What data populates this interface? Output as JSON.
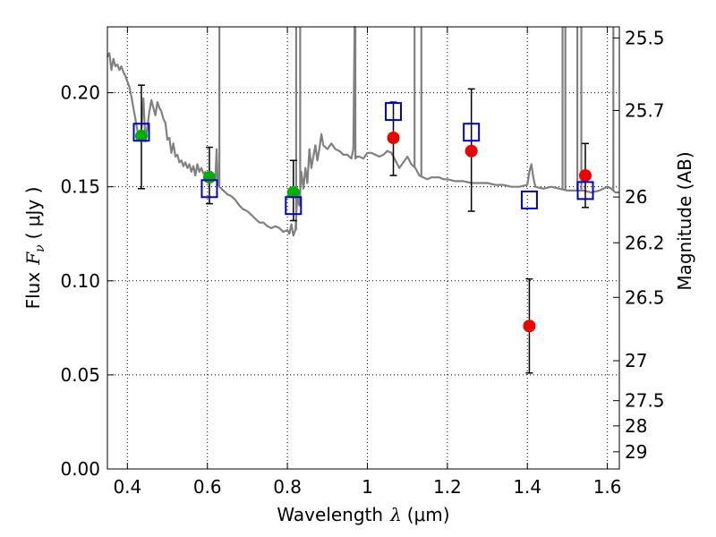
{
  "chart_data": {
    "type": "scatter",
    "xlabel": "Wavelength",
    "xlabel_symbol": "λ",
    "xlabel_unit": "(μm)",
    "ylabel": "Flux",
    "ylabel_symbol": "F",
    "ylabel_subscript": "ν",
    "ylabel_unit": "( μJy )",
    "y2label": "Magnitude (AB)",
    "xlim": [
      0.35,
      1.63
    ],
    "ylim": [
      0.0,
      0.235
    ],
    "grid": true,
    "grid_style": "dotted",
    "x_ticks": [
      {
        "value": 0.4,
        "label": "0.4"
      },
      {
        "value": 0.6,
        "label": "0.6"
      },
      {
        "value": 0.8,
        "label": "0.8"
      },
      {
        "value": 1.0,
        "label": "1"
      },
      {
        "value": 1.2,
        "label": "1.2"
      },
      {
        "value": 1.4,
        "label": "1.4"
      },
      {
        "value": 1.6,
        "label": "1.6"
      }
    ],
    "y_ticks": [
      {
        "value": 0.0,
        "label": "0.00"
      },
      {
        "value": 0.05,
        "label": "0.05"
      },
      {
        "value": 0.1,
        "label": "0.10"
      },
      {
        "value": 0.15,
        "label": "0.15"
      },
      {
        "value": 0.2,
        "label": "0.20"
      }
    ],
    "y2_ticks": [
      {
        "mag": 25.5,
        "label": "25.5"
      },
      {
        "mag": 25.7,
        "label": "25.7"
      },
      {
        "mag": 26.0,
        "label": "26"
      },
      {
        "mag": 26.2,
        "label": "26.2"
      },
      {
        "mag": 26.5,
        "label": "26.5"
      },
      {
        "mag": 27.0,
        "label": "27"
      },
      {
        "mag": 27.5,
        "label": "27.5"
      },
      {
        "mag": 28.0,
        "label": "28"
      },
      {
        "mag": 29.0,
        "label": "29"
      }
    ],
    "model_spectrum": {
      "color": "#808080",
      "x": [
        0.35,
        0.355,
        0.36,
        0.365,
        0.37,
        0.375,
        0.38,
        0.385,
        0.39,
        0.395,
        0.4,
        0.405,
        0.41,
        0.415,
        0.42,
        0.425,
        0.43,
        0.435,
        0.44,
        0.445,
        0.45,
        0.455,
        0.46,
        0.465,
        0.47,
        0.475,
        0.48,
        0.485,
        0.49,
        0.495,
        0.5,
        0.505,
        0.51,
        0.515,
        0.52,
        0.525,
        0.53,
        0.535,
        0.54,
        0.545,
        0.55,
        0.555,
        0.56,
        0.565,
        0.57,
        0.575,
        0.58,
        0.585,
        0.59,
        0.595,
        0.6,
        0.605,
        0.61,
        0.615,
        0.62,
        0.623,
        0.626,
        0.63,
        0.64,
        0.65,
        0.66,
        0.67,
        0.68,
        0.69,
        0.7,
        0.71,
        0.72,
        0.73,
        0.74,
        0.75,
        0.76,
        0.77,
        0.78,
        0.79,
        0.8,
        0.805,
        0.81,
        0.815,
        0.82,
        0.825,
        0.83,
        0.835,
        0.84,
        0.845,
        0.85,
        0.855,
        0.86,
        0.865,
        0.87,
        0.875,
        0.88,
        0.885,
        0.89,
        0.9,
        0.91,
        0.92,
        0.93,
        0.94,
        0.95,
        0.96,
        0.965,
        0.968,
        0.97,
        0.975,
        0.98,
        0.99,
        1.0,
        1.01,
        1.02,
        1.03,
        1.04,
        1.05,
        1.06,
        1.07,
        1.08,
        1.09,
        1.1,
        1.11,
        1.12,
        1.125,
        1.13,
        1.14,
        1.15,
        1.16,
        1.17,
        1.18,
        1.19,
        1.2,
        1.22,
        1.24,
        1.26,
        1.28,
        1.3,
        1.32,
        1.34,
        1.36,
        1.38,
        1.4,
        1.405,
        1.41,
        1.415,
        1.42,
        1.44,
        1.46,
        1.48,
        1.5,
        1.52,
        1.54,
        1.56,
        1.58,
        1.6,
        1.61,
        1.615,
        1.62,
        1.63
      ],
      "y": [
        0.219,
        0.221,
        0.212,
        0.218,
        0.214,
        0.215,
        0.212,
        0.214,
        0.211,
        0.209,
        0.206,
        0.203,
        0.198,
        0.192,
        0.186,
        0.18,
        0.176,
        0.18,
        0.197,
        0.174,
        0.182,
        0.19,
        0.196,
        0.192,
        0.188,
        0.195,
        0.192,
        0.19,
        0.186,
        0.184,
        0.175,
        0.176,
        0.168,
        0.173,
        0.166,
        0.167,
        0.163,
        0.164,
        0.161,
        0.163,
        0.16,
        0.162,
        0.158,
        0.161,
        0.156,
        0.162,
        0.158,
        0.16,
        0.157,
        0.158,
        0.156,
        0.157,
        0.158,
        0.155,
        0.154,
        0.17,
        0.152,
        0.15,
        0.148,
        0.146,
        0.145,
        0.143,
        0.14,
        0.138,
        0.137,
        0.135,
        0.133,
        0.131,
        0.131,
        0.129,
        0.128,
        0.129,
        0.128,
        0.126,
        0.127,
        0.125,
        0.13,
        0.124,
        0.127,
        0.145,
        0.14,
        0.158,
        0.149,
        0.16,
        0.152,
        0.17,
        0.16,
        0.166,
        0.172,
        0.164,
        0.17,
        0.178,
        0.172,
        0.17,
        0.173,
        0.17,
        0.169,
        0.167,
        0.167,
        0.165,
        0.17,
        0.235,
        0.165,
        0.166,
        0.166,
        0.165,
        0.168,
        0.168,
        0.167,
        0.166,
        0.167,
        0.169,
        0.168,
        0.164,
        0.16,
        0.163,
        0.166,
        0.162,
        0.16,
        0.158,
        0.156,
        0.155,
        0.154,
        0.155,
        0.155,
        0.155,
        0.154,
        0.154,
        0.153,
        0.153,
        0.152,
        0.152,
        0.152,
        0.151,
        0.151,
        0.15,
        0.15,
        0.151,
        0.158,
        0.162,
        0.155,
        0.15,
        0.149,
        0.15,
        0.149,
        0.148,
        0.148,
        0.148,
        0.147,
        0.148,
        0.15,
        0.149,
        0.148,
        0.147,
        0.147
      ],
      "spikes": [
        {
          "x": 0.63,
          "top": 0.235
        },
        {
          "x": 0.822,
          "top": 0.235
        },
        {
          "x": 0.832,
          "top": 0.235
        },
        {
          "x": 0.97,
          "top": 0.235
        },
        {
          "x": 1.118,
          "top": 0.235
        },
        {
          "x": 1.135,
          "top": 0.235
        },
        {
          "x": 1.488,
          "top": 0.235
        },
        {
          "x": 1.495,
          "top": 0.235
        },
        {
          "x": 1.525,
          "top": 0.235
        },
        {
          "x": 1.535,
          "top": 0.235
        },
        {
          "x": 1.615,
          "top": 0.235
        }
      ]
    },
    "series": [
      {
        "marker": "circle",
        "color": "#00b000",
        "points": [
          {
            "x": 0.435,
            "y": 0.177,
            "ylo": 0.149,
            "yhi": 0.204
          },
          {
            "x": 0.605,
            "y": 0.155,
            "ylo": 0.141,
            "yhi": 0.171
          },
          {
            "x": 0.815,
            "y": 0.147,
            "ylo": 0.132,
            "yhi": 0.164
          }
        ]
      },
      {
        "marker": "circle",
        "color": "#ee0000",
        "points": [
          {
            "x": 1.065,
            "y": 0.176,
            "ylo": 0.156,
            "yhi": 0.195
          },
          {
            "x": 1.26,
            "y": 0.169,
            "ylo": 0.137,
            "yhi": 0.202
          },
          {
            "x": 1.405,
            "y": 0.076,
            "ylo": 0.051,
            "yhi": 0.101
          },
          {
            "x": 1.545,
            "y": 0.156,
            "ylo": 0.139,
            "yhi": 0.173
          }
        ]
      },
      {
        "marker": "square-open",
        "color": "#0000cc",
        "points": [
          {
            "x": 0.435,
            "y": 0.179
          },
          {
            "x": 0.605,
            "y": 0.149
          },
          {
            "x": 0.815,
            "y": 0.14
          },
          {
            "x": 1.065,
            "y": 0.19
          },
          {
            "x": 1.26,
            "y": 0.179
          },
          {
            "x": 1.405,
            "y": 0.143
          },
          {
            "x": 1.545,
            "y": 0.148
          }
        ]
      }
    ]
  }
}
